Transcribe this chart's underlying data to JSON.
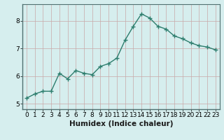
{
  "xlabel": "Humidex (Indice chaleur)",
  "x": [
    0,
    1,
    2,
    3,
    4,
    5,
    6,
    7,
    8,
    9,
    10,
    11,
    12,
    13,
    14,
    15,
    16,
    17,
    18,
    19,
    20,
    21,
    22,
    23
  ],
  "y": [
    5.2,
    5.35,
    5.45,
    5.45,
    6.1,
    5.9,
    6.2,
    6.1,
    6.05,
    6.35,
    6.45,
    6.65,
    7.3,
    7.8,
    8.25,
    8.1,
    7.8,
    7.7,
    7.45,
    7.35,
    7.2,
    7.1,
    7.05,
    6.95
  ],
  "line_color": "#2d7d6d",
  "marker": "+",
  "marker_size": 4,
  "bg_color": "#d6eeee",
  "grid_color": "#c8a8a8",
  "axis_bg": "#d6eeee",
  "ylim": [
    4.8,
    8.6
  ],
  "xlim": [
    -0.5,
    23.5
  ],
  "yticks": [
    5,
    6,
    7,
    8
  ],
  "xticks": [
    0,
    1,
    2,
    3,
    4,
    5,
    6,
    7,
    8,
    9,
    10,
    11,
    12,
    13,
    14,
    15,
    16,
    17,
    18,
    19,
    20,
    21,
    22,
    23
  ],
  "tick_fontsize": 6.5,
  "xlabel_fontsize": 7.5,
  "line_width": 1.0
}
